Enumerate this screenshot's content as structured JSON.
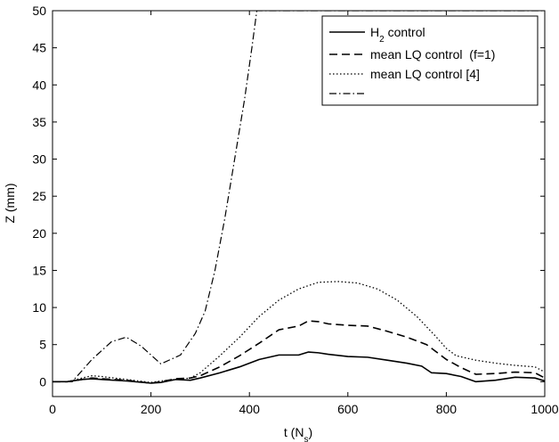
{
  "chart_data": {
    "type": "line",
    "title": "",
    "xlabel": "t (N",
    "xlabel_sub": "s",
    "xlabel_end": ")",
    "ylabel": "Z (mm)",
    "xlim": [
      0,
      1000
    ],
    "ylim": [
      -2,
      50
    ],
    "xticks": [
      0,
      200,
      400,
      600,
      800,
      1000
    ],
    "yticks": [
      0,
      5,
      10,
      15,
      20,
      25,
      30,
      35,
      40,
      45,
      50
    ],
    "grid": false,
    "legend_position": "top-right",
    "series": [
      {
        "name": "H",
        "name_sub": "2",
        "name_end": " control",
        "style": "solid",
        "x": [
          0,
          30,
          60,
          80,
          100,
          150,
          200,
          220,
          250,
          280,
          300,
          340,
          380,
          420,
          460,
          500,
          520,
          540,
          560,
          600,
          640,
          680,
          720,
          750,
          770,
          800,
          830,
          860,
          900,
          940,
          980,
          1000
        ],
        "y": [
          0,
          0,
          0.3,
          0.4,
          0.3,
          0.1,
          -0.2,
          -0.1,
          0.3,
          0.2,
          0.5,
          1.2,
          2,
          3,
          3.6,
          3.6,
          4,
          3.9,
          3.7,
          3.4,
          3.3,
          2.9,
          2.5,
          2.1,
          1.2,
          1.1,
          0.7,
          0,
          0.2,
          0.6,
          0.5,
          0.1
        ]
      },
      {
        "name": "mean LQ control  (f=1)",
        "style": "dashed",
        "x": [
          0,
          30,
          60,
          80,
          100,
          150,
          200,
          220,
          250,
          280,
          300,
          340,
          380,
          420,
          460,
          500,
          520,
          540,
          560,
          600,
          640,
          680,
          720,
          760,
          800,
          830,
          860,
          900,
          940,
          980,
          1000
        ],
        "y": [
          0,
          0,
          0.3,
          0.5,
          0.4,
          0.2,
          -0.2,
          0,
          0.4,
          0.5,
          0.8,
          2,
          3.5,
          5.2,
          7,
          7.5,
          8.2,
          8.1,
          7.8,
          7.6,
          7.5,
          6.8,
          6,
          5,
          3,
          1.9,
          1,
          1.1,
          1.3,
          1.2,
          0.5
        ]
      },
      {
        "name": "mean LQ control [4]",
        "style": "dotted",
        "x": [
          0,
          30,
          60,
          80,
          100,
          150,
          200,
          220,
          250,
          280,
          300,
          340,
          380,
          420,
          460,
          500,
          540,
          580,
          620,
          660,
          700,
          740,
          780,
          800,
          820,
          860,
          900,
          940,
          980,
          1000
        ],
        "y": [
          0,
          0,
          0.5,
          0.8,
          0.7,
          0.3,
          -0.1,
          0.1,
          0.3,
          0.5,
          1.2,
          3.5,
          6,
          8.8,
          11,
          12.5,
          13.4,
          13.5,
          13.3,
          12.5,
          11,
          8.8,
          6,
          4.5,
          3.5,
          2.9,
          2.5,
          2.2,
          2,
          1.3
        ]
      },
      {
        "name": "",
        "style": "dashdot",
        "x": [
          0,
          40,
          80,
          120,
          150,
          180,
          220,
          260,
          290,
          310,
          330,
          350,
          370,
          390,
          405,
          415,
          500,
          600,
          700,
          800,
          900,
          1000
        ],
        "y": [
          0,
          0,
          3,
          5.4,
          6,
          4.8,
          2.4,
          3.6,
          6.5,
          9.5,
          15,
          22,
          30,
          38,
          45,
          50,
          50,
          50,
          50,
          50,
          50,
          50
        ]
      }
    ]
  }
}
